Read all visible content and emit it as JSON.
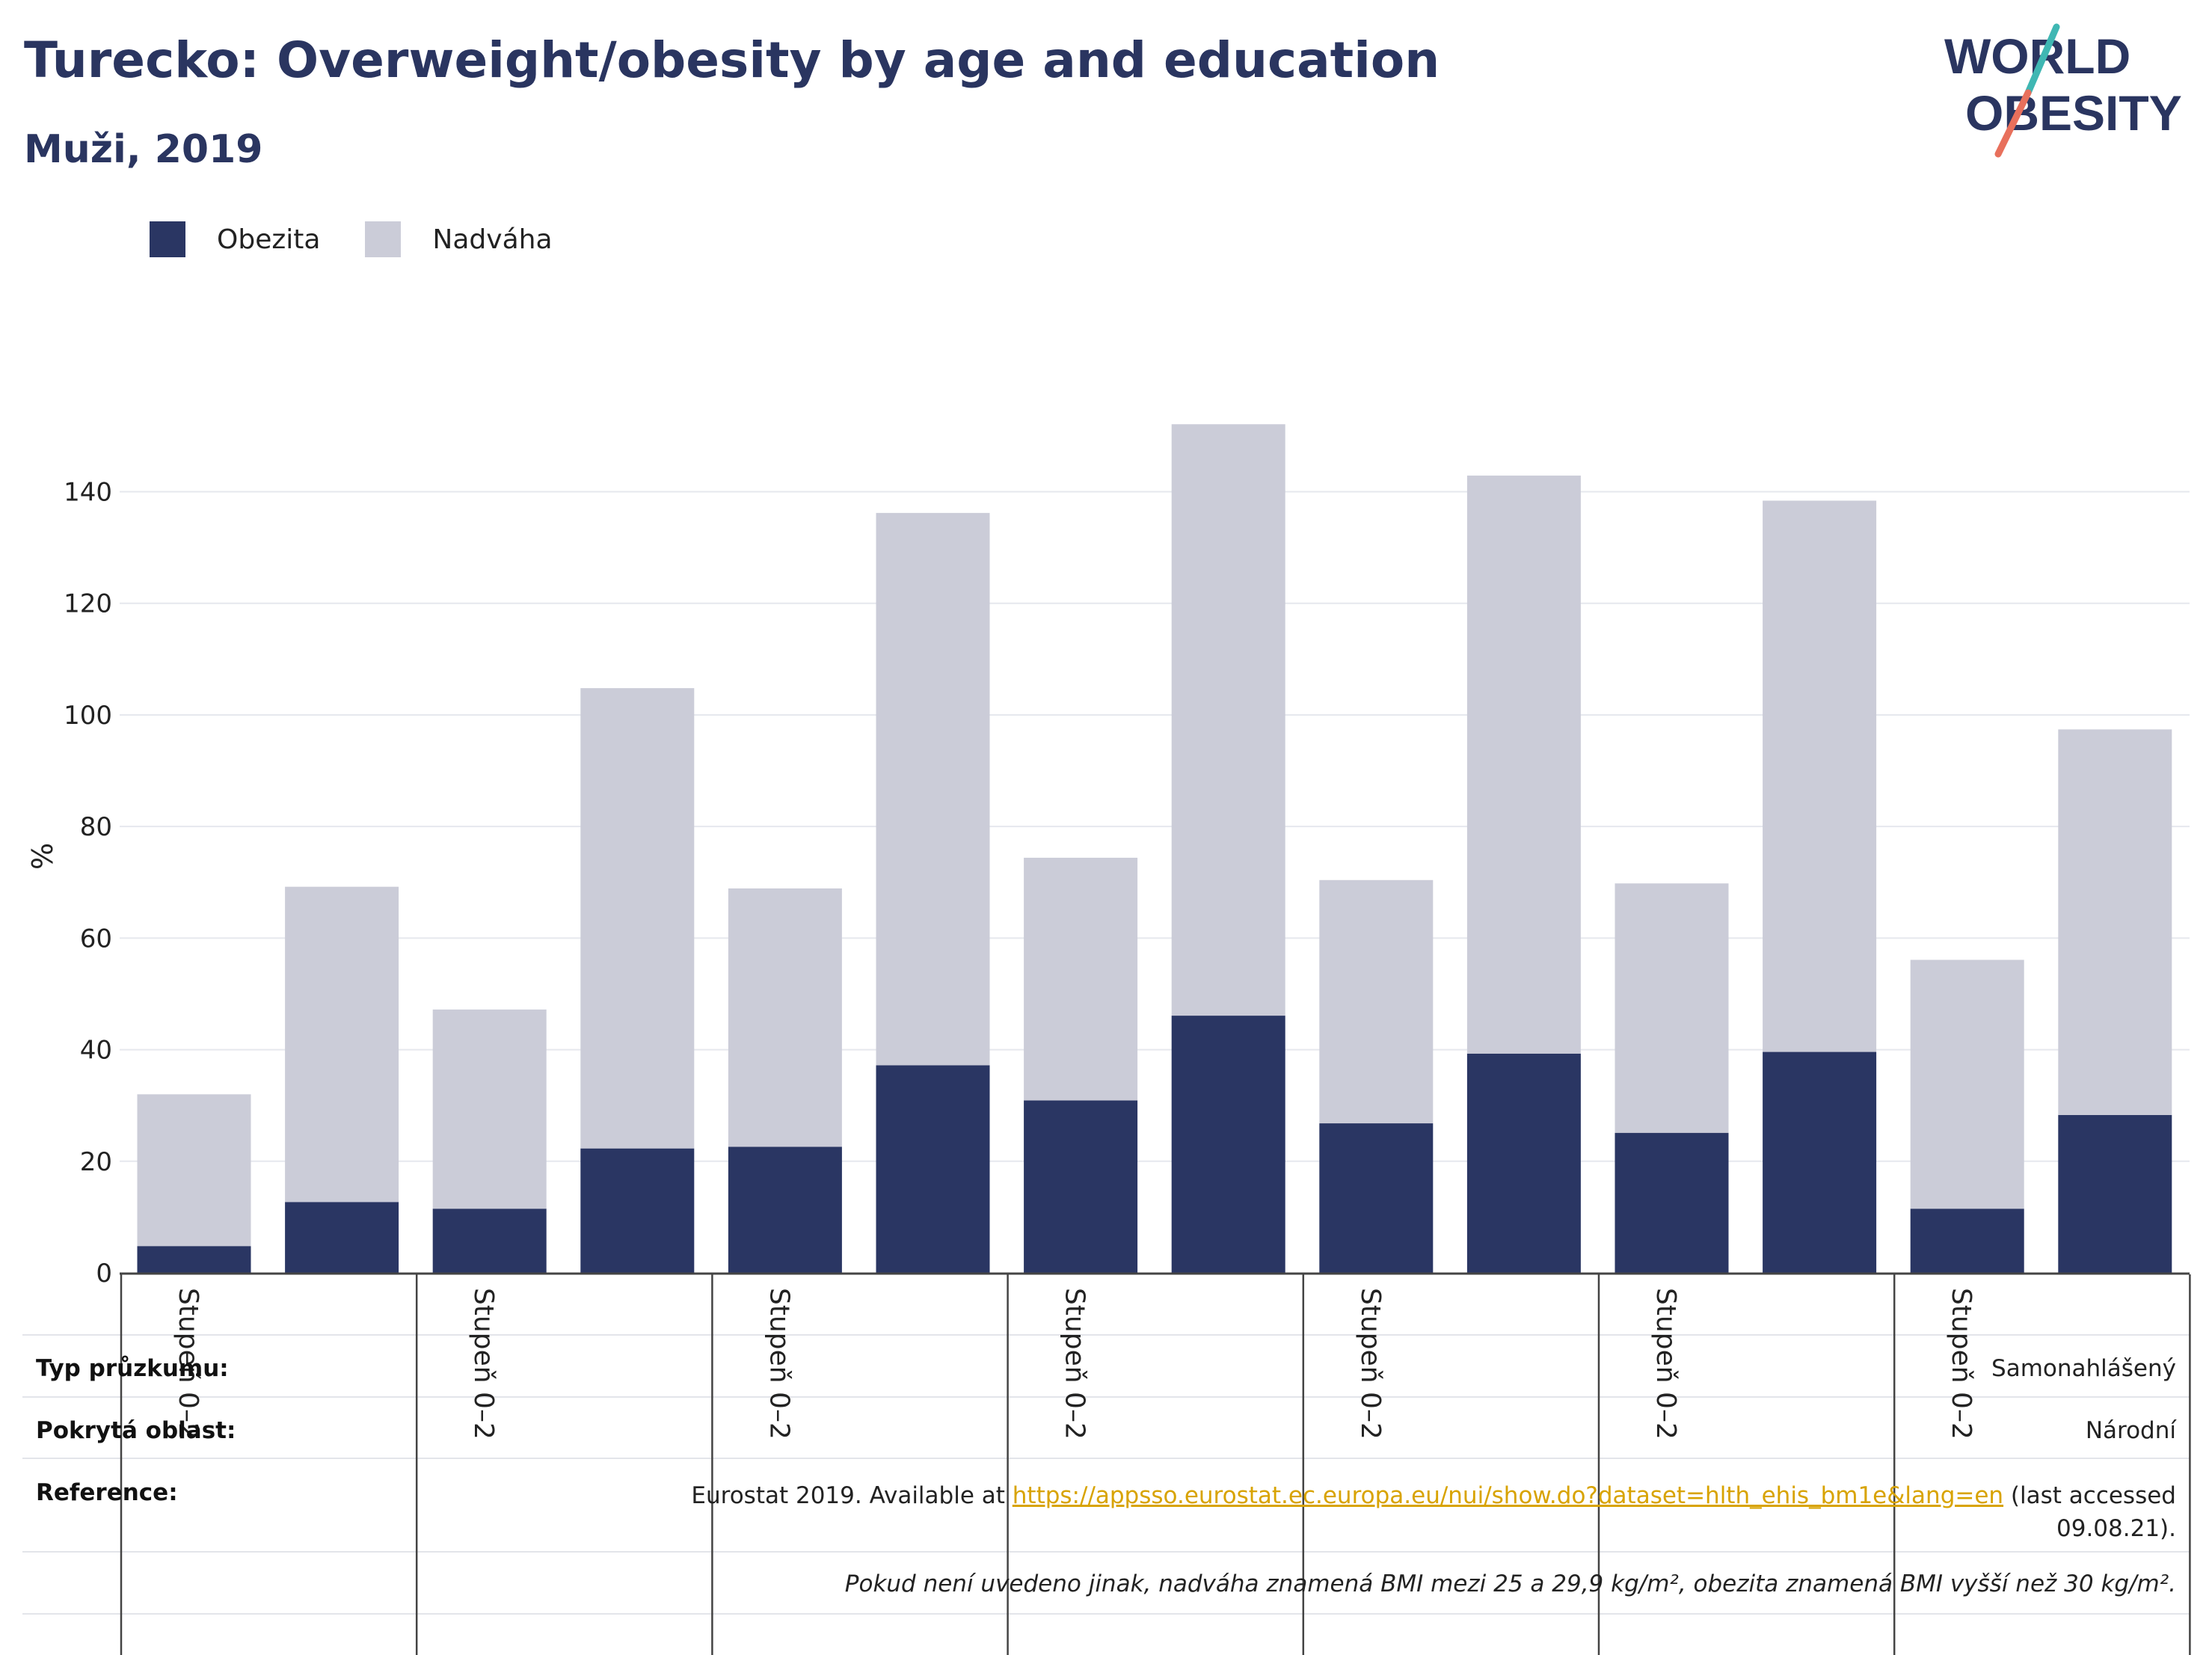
{
  "header": {
    "title": "Turecko: Overweight/obesity by age and education",
    "subtitle": "Muži, 2019"
  },
  "logo": {
    "line1": "WORLD",
    "line2": "OBESITY"
  },
  "colors": {
    "obesity": "#2a3663",
    "overweight": "#cbccd8",
    "title": "#2a3560",
    "accent_teal": "#3fb7b3",
    "accent_coral": "#e8705c",
    "link": "#d8a300"
  },
  "chart_data": {
    "type": "bar",
    "stacked": true,
    "ylabel": "%",
    "ylim": [
      0,
      152
    ],
    "yticks": [
      0,
      20,
      40,
      60,
      80,
      100,
      120,
      140
    ],
    "grid": true,
    "legend_position": "top-left",
    "category_label": "Stupeň 0–2",
    "group_count": 7,
    "series": [
      {
        "name": "Obezita",
        "color": "#2a3663",
        "values": [
          4.8,
          12.7,
          11.5,
          22.3,
          22.6,
          37.2,
          30.9,
          46.1,
          26.8,
          39.3,
          25.1,
          39.6,
          11.5,
          28.3
        ]
      },
      {
        "name": "Nadváha",
        "color": "#cbccd8",
        "values": [
          27.2,
          56.5,
          35.7,
          82.5,
          46.3,
          99.0,
          43.5,
          106.0,
          43.6,
          103.6,
          44.7,
          98.8,
          44.6,
          69.1
        ]
      }
    ]
  },
  "table": {
    "rows": [
      {
        "label": "Typ průzkumu:",
        "value": "Samonahlášený"
      },
      {
        "label": "Pokrytá oblast:",
        "value": "Národní"
      },
      {
        "label": "Reference:",
        "value_prefix": "Eurostat 2019. Available at ",
        "link": "https://appsso.eurostat.ec.europa.eu/nui/show.do?dataset=hlth_ehis_bm1e&lang=en",
        "value_suffix": " (last accessed",
        "value_line2": "09.08.21)."
      }
    ],
    "note": "Pokud není uvedeno jinak, nadváha znamená BMI mezi 25 a 29,9 kg/m², obezita znamená BMI vyšší než 30 kg/m²."
  }
}
